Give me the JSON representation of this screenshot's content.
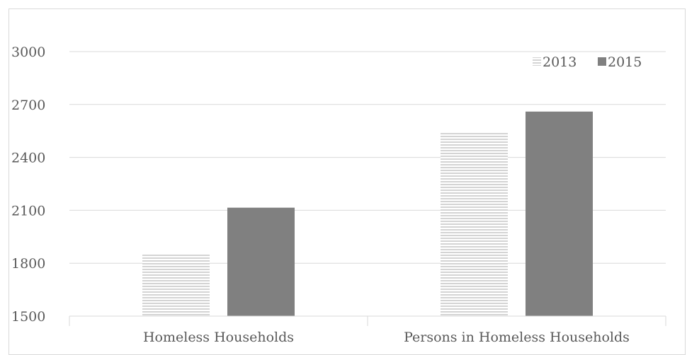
{
  "chart_data": {
    "type": "bar",
    "categories": [
      "Homeless Households",
      "Persons in Homeless Households"
    ],
    "series": [
      {
        "name": "2013",
        "values": [
          1850,
          2540
        ],
        "color": "#e6e6e6",
        "pattern": "horizontal-stripes"
      },
      {
        "name": "2015",
        "values": [
          2115,
          2660
        ],
        "color": "#808080",
        "pattern": "solid"
      }
    ],
    "title": "",
    "xlabel": "",
    "ylabel": "",
    "ylim": [
      1500,
      3000
    ],
    "yticks": [
      "1500",
      "1800",
      "2100",
      "2400",
      "2700",
      "3000"
    ],
    "grid": true,
    "legend_position": "top-right"
  }
}
